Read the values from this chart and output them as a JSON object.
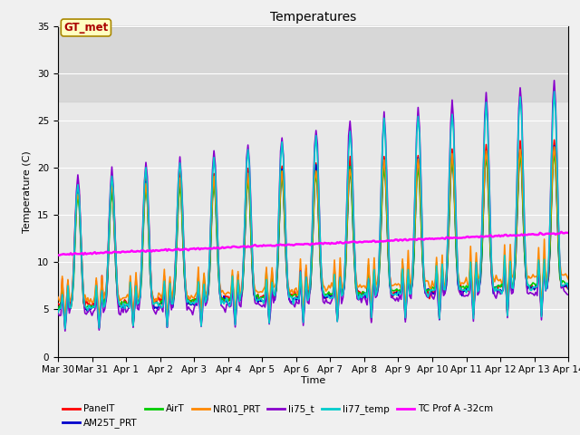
{
  "title": "Temperatures",
  "xlabel": "Time",
  "ylabel": "Temperature (C)",
  "ylim": [
    0,
    35
  ],
  "xlim_hours": 360,
  "background_color": "#f0f0f0",
  "plot_bg_color": "#e8e8e8",
  "shade_ymin": 27,
  "shade_ymax": 35,
  "gt_met_label": "GT_met",
  "xtick_labels": [
    "Mar 30",
    "Mar 31",
    "Apr 1",
    "Apr 2",
    "Apr 3",
    "Apr 4",
    "Apr 5",
    "Apr 6",
    "Apr 7",
    "Apr 8",
    "Apr 9",
    "Apr 10",
    "Apr 11",
    "Apr 12",
    "Apr 13",
    "Apr 14"
  ],
  "xtick_positions": [
    0,
    24,
    48,
    72,
    96,
    120,
    144,
    168,
    192,
    216,
    240,
    264,
    288,
    312,
    336,
    360
  ],
  "series_colors": {
    "PanelT": "#ff0000",
    "AM25T_PRT": "#0000cc",
    "AirT": "#00cc00",
    "NR01_PRT": "#ff8800",
    "li75_t": "#8800cc",
    "li77_temp": "#00cccc",
    "TC Prof A -32cm": "#ff00ff"
  },
  "series_lw": {
    "PanelT": 1.2,
    "AM25T_PRT": 1.2,
    "AirT": 1.2,
    "NR01_PRT": 1.2,
    "li75_t": 1.2,
    "li77_temp": 1.2,
    "TC Prof A -32cm": 1.8
  },
  "title_fontsize": 10,
  "axis_fontsize": 8,
  "tick_fontsize": 7.5,
  "legend_fontsize": 7.5
}
